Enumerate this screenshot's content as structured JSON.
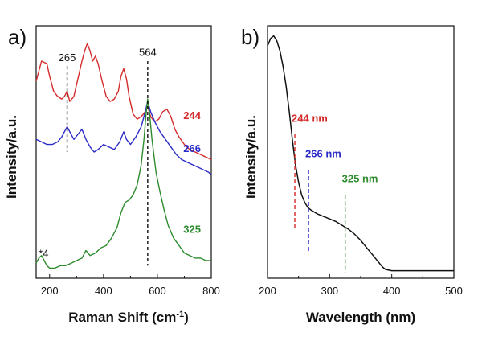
{
  "chart_data": [
    {
      "type": "line",
      "panel_label": "a)",
      "xlabel": "Raman Shift (cm",
      "xlabel_sup": "-1",
      "xlabel_close": ")",
      "ylabel": "Intensity/a.u.",
      "xlim": [
        150,
        800
      ],
      "xticks": [
        "200",
        "400",
        "600",
        "800"
      ],
      "peak_markers": [
        {
          "x": 265,
          "label": "265"
        },
        {
          "x": 564,
          "label": "564"
        }
      ],
      "annotation": "*4",
      "series": [
        {
          "name": "244",
          "color": "#d42b2b",
          "x": [
            150,
            170,
            190,
            200,
            215,
            230,
            245,
            255,
            265,
            275,
            290,
            305,
            320,
            330,
            340,
            350,
            360,
            370,
            380,
            395,
            410,
            425,
            440,
            455,
            465,
            475,
            485,
            495,
            510,
            525,
            540,
            555,
            564,
            575,
            590,
            605,
            620,
            635,
            650,
            665,
            680,
            700,
            720,
            740,
            760,
            780,
            800
          ],
          "y": [
            0.78,
            0.86,
            0.85,
            0.8,
            0.74,
            0.72,
            0.71,
            0.72,
            0.74,
            0.7,
            0.72,
            0.79,
            0.86,
            0.9,
            0.93,
            0.9,
            0.86,
            0.88,
            0.85,
            0.78,
            0.72,
            0.7,
            0.71,
            0.74,
            0.8,
            0.83,
            0.79,
            0.72,
            0.65,
            0.63,
            0.64,
            0.66,
            0.68,
            0.64,
            0.62,
            0.63,
            0.66,
            0.67,
            0.64,
            0.59,
            0.56,
            0.53,
            0.51,
            0.5,
            0.49,
            0.48,
            0.47
          ]
        },
        {
          "name": "266",
          "color": "#2b2bc8",
          "x": [
            150,
            170,
            190,
            210,
            230,
            245,
            255,
            265,
            275,
            290,
            305,
            320,
            335,
            350,
            365,
            380,
            400,
            420,
            440,
            460,
            475,
            485,
            500,
            520,
            540,
            555,
            564,
            575,
            590,
            610,
            630,
            650,
            670,
            690,
            710,
            730,
            750,
            770,
            790,
            800
          ],
          "y": [
            0.55,
            0.54,
            0.53,
            0.53,
            0.54,
            0.56,
            0.58,
            0.6,
            0.58,
            0.55,
            0.57,
            0.59,
            0.55,
            0.52,
            0.5,
            0.51,
            0.53,
            0.52,
            0.51,
            0.54,
            0.58,
            0.55,
            0.53,
            0.56,
            0.6,
            0.66,
            0.7,
            0.66,
            0.62,
            0.58,
            0.55,
            0.52,
            0.49,
            0.47,
            0.46,
            0.45,
            0.44,
            0.43,
            0.42,
            0.41
          ]
        },
        {
          "name": "325",
          "color": "#2e8b2e",
          "x": [
            150,
            160,
            170,
            180,
            190,
            200,
            220,
            240,
            260,
            280,
            300,
            320,
            335,
            350,
            370,
            390,
            410,
            430,
            450,
            465,
            480,
            495,
            510,
            525,
            540,
            550,
            558,
            564,
            570,
            580,
            595,
            610,
            625,
            640,
            660,
            680,
            700,
            720,
            740,
            760,
            780,
            800
          ],
          "y": [
            0.06,
            0.08,
            0.09,
            0.07,
            0.05,
            0.04,
            0.04,
            0.05,
            0.05,
            0.06,
            0.07,
            0.08,
            0.11,
            0.09,
            0.1,
            0.12,
            0.13,
            0.16,
            0.2,
            0.26,
            0.3,
            0.31,
            0.33,
            0.37,
            0.45,
            0.55,
            0.65,
            0.71,
            0.66,
            0.55,
            0.42,
            0.34,
            0.27,
            0.21,
            0.16,
            0.13,
            0.1,
            0.09,
            0.08,
            0.08,
            0.07,
            0.07
          ]
        }
      ]
    },
    {
      "type": "line",
      "panel_label": "b)",
      "xlabel": "Wavelength (nm)",
      "ylabel": "Intensity/a.u.",
      "xlim": [
        200,
        500
      ],
      "xticks": [
        "200",
        "300",
        "400",
        "500"
      ],
      "wavelength_markers": [
        {
          "x": 244,
          "label": "244 nm",
          "color": "#d42b2b"
        },
        {
          "x": 266,
          "label": "266 nm",
          "color": "#2b2bc8"
        },
        {
          "x": 325,
          "label": "325 nm",
          "color": "#2e8b2e"
        }
      ],
      "series": [
        {
          "color": "#111111",
          "x": [
            200,
            205,
            210,
            215,
            220,
            225,
            230,
            235,
            240,
            245,
            250,
            255,
            260,
            265,
            270,
            280,
            290,
            300,
            310,
            320,
            330,
            340,
            350,
            360,
            370,
            380,
            385,
            390,
            400,
            420,
            440,
            460,
            480,
            500
          ],
          "y": [
            0.92,
            0.95,
            0.96,
            0.94,
            0.9,
            0.84,
            0.76,
            0.66,
            0.55,
            0.45,
            0.38,
            0.33,
            0.3,
            0.28,
            0.27,
            0.255,
            0.245,
            0.235,
            0.225,
            0.21,
            0.195,
            0.175,
            0.15,
            0.12,
            0.09,
            0.06,
            0.045,
            0.035,
            0.03,
            0.03,
            0.03,
            0.03,
            0.03,
            0.03
          ]
        }
      ]
    }
  ]
}
